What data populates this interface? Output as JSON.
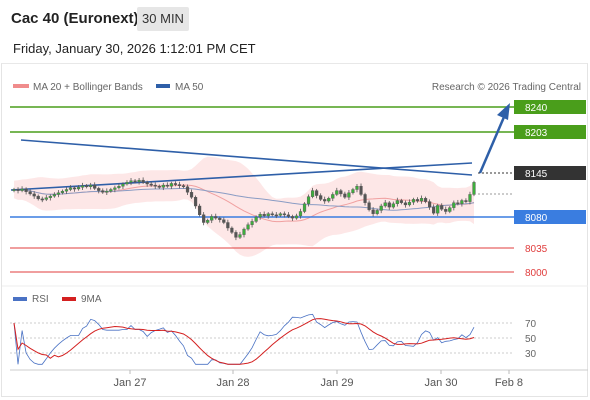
{
  "header": {
    "title": "Cac 40 (Euronext)",
    "timeframe": "30 MIN",
    "timestamp": "Friday, January 30, 2026 1:12:01 PM CET"
  },
  "chart_data": {
    "type": "candlestick",
    "legend": [
      {
        "label": "MA 20 + Bollinger Bands",
        "color": "#f08c8c"
      },
      {
        "label": "MA 50",
        "color": "#2e5fa8"
      }
    ],
    "credit": "Research © 2026 Trading Central",
    "current_price": 8145,
    "levels": [
      {
        "label": "8240",
        "value": 8240,
        "kind": "resistance",
        "color": "#4a9e1b"
      },
      {
        "label": "8203",
        "value": 8203,
        "kind": "resistance",
        "color": "#4a9e1b"
      },
      {
        "label": "8145",
        "value": 8145,
        "kind": "current",
        "color": "#333333"
      },
      {
        "label": "8080",
        "value": 8080,
        "kind": "pivot",
        "color": "#3a7de0"
      },
      {
        "label": "8035",
        "value": 8035,
        "kind": "support",
        "color": "#e03c3c"
      },
      {
        "label": "8000",
        "value": 8000,
        "kind": "support",
        "color": "#e03c3c"
      }
    ],
    "x_labels": [
      "Jan 27",
      "Jan 28",
      "Jan 29",
      "Jan 30",
      "Feb 8"
    ],
    "rsi": {
      "legend": [
        {
          "label": "RSI",
          "color": "#4a72c4"
        },
        {
          "label": "9MA",
          "color": "#d42020"
        }
      ],
      "ticks": [
        "70",
        "50",
        "30"
      ],
      "ylim": [
        10,
        90
      ]
    },
    "price_series": [
      8130,
      8128,
      8131,
      8126,
      8122,
      8118,
      8113,
      8112,
      8115,
      8118,
      8121,
      8124,
      8127,
      8130,
      8133,
      8131,
      8134,
      8137,
      8135,
      8138,
      8132,
      8128,
      8125,
      8127,
      8130,
      8133,
      8136,
      8140,
      8143,
      8146,
      8144,
      8147,
      8143,
      8140,
      8138,
      8136,
      8134,
      8138,
      8136,
      8141,
      8139,
      8137,
      8135,
      8125,
      8116,
      8100,
      8084,
      8070,
      8074,
      8081,
      8078,
      8075,
      8070,
      8060,
      8052,
      8043,
      8048,
      8058,
      8066,
      8072,
      8080,
      8085,
      8082,
      8086,
      8084,
      8083,
      8086,
      8084,
      8081,
      8078,
      8082,
      8090,
      8104,
      8117,
      8128,
      8119,
      8112,
      8109,
      8114,
      8121,
      8128,
      8122,
      8116,
      8124,
      8130,
      8136,
      8121,
      8106,
      8093,
      8086,
      8092,
      8100,
      8106,
      8098,
      8104,
      8110,
      8106,
      8102,
      8107,
      8112,
      8109,
      8114,
      8108,
      8098,
      8087,
      8101,
      8094,
      8090,
      8097,
      8106,
      8104,
      8110,
      8108,
      8121,
      8143
    ]
  }
}
